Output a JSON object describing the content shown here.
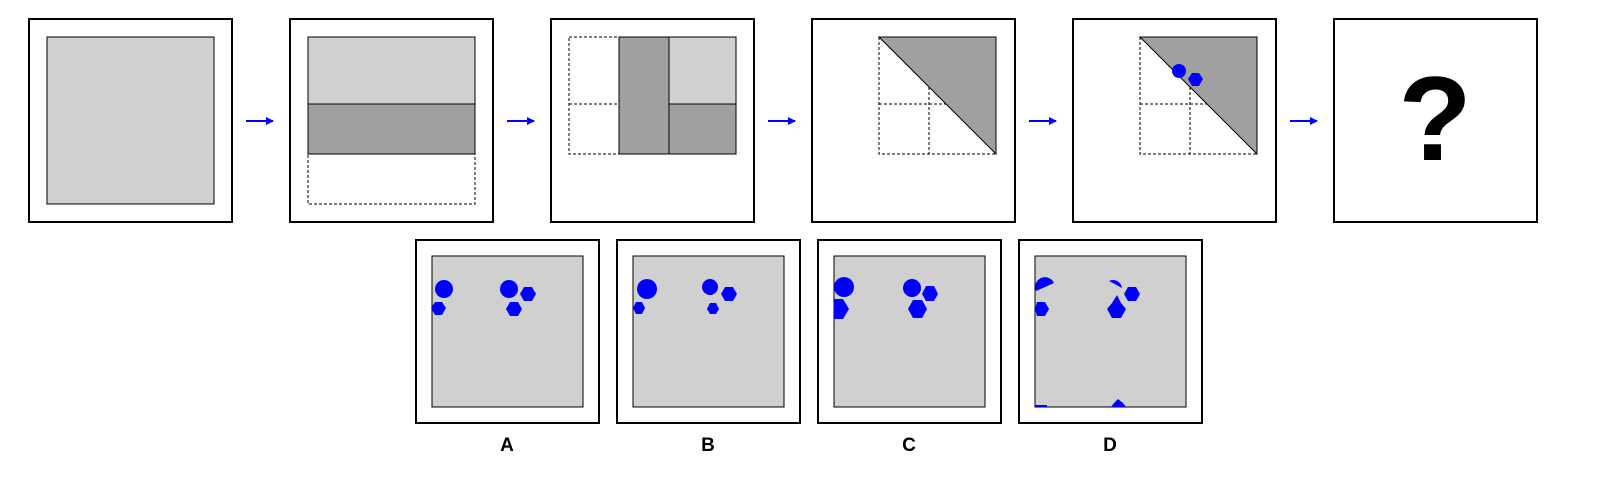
{
  "puzzle": {
    "unknown_symbol": "?",
    "option_labels": [
      "A",
      "B",
      "C",
      "D"
    ],
    "colors": {
      "paper": "#d0d0d0",
      "folded": "#a0a0a0",
      "hole": "#0000ff",
      "arrow": "#0000ff",
      "outline": "#000000"
    },
    "icons": [
      "right-arrow-icon",
      "circle-hole-icon",
      "hexagon-hole-icon"
    ]
  }
}
